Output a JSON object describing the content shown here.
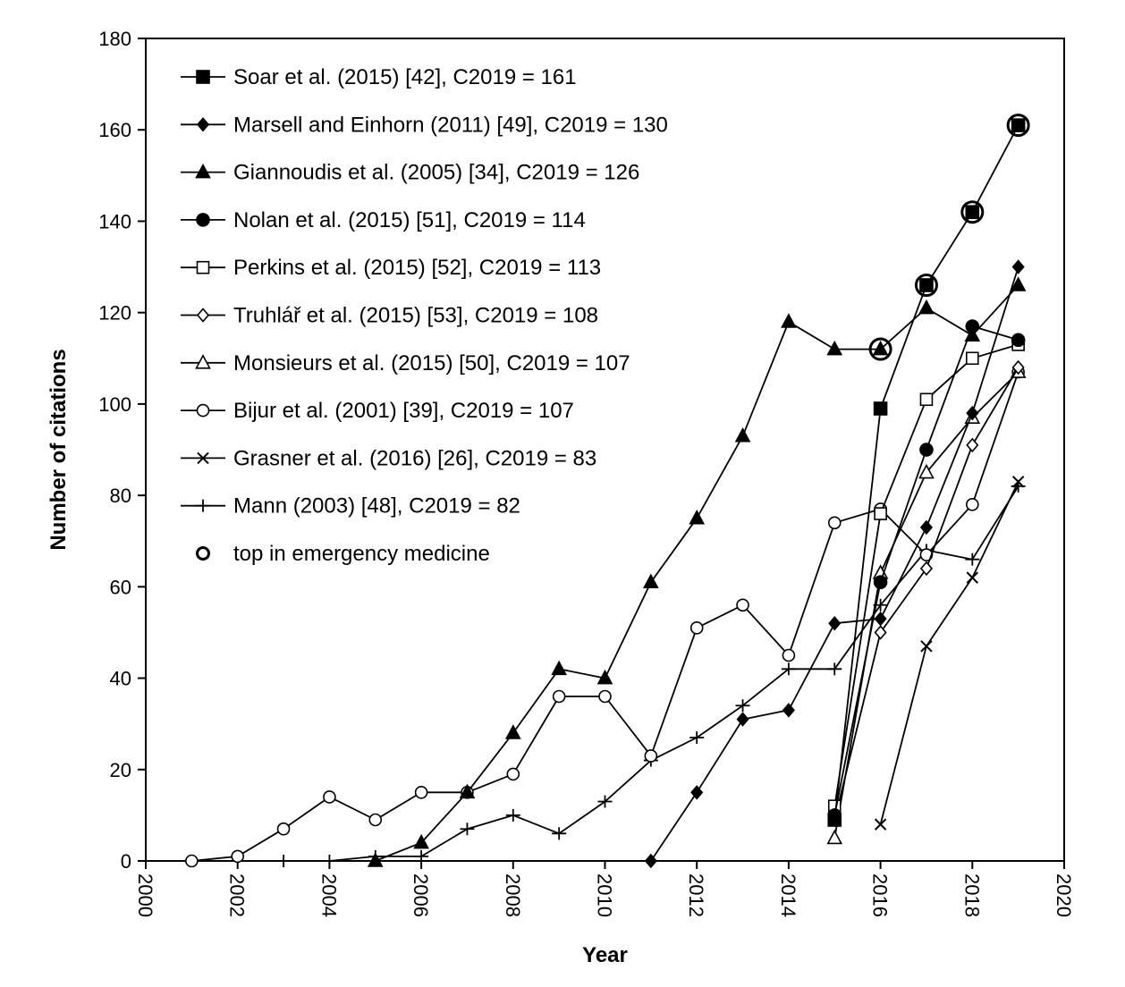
{
  "chart_data": {
    "type": "line",
    "xlabel": "Year",
    "ylabel": "Number of citations",
    "xlim": [
      2000,
      2020
    ],
    "ylim": [
      0,
      180
    ],
    "x_ticks": [
      2000,
      2002,
      2004,
      2006,
      2008,
      2010,
      2012,
      2014,
      2016,
      2018,
      2020
    ],
    "y_ticks": [
      0,
      20,
      40,
      60,
      80,
      100,
      120,
      140,
      160,
      180
    ],
    "grid": false,
    "legend_position": "top-left",
    "series": [
      {
        "name": "Soar et al. (2015) [42], C2019 = 161",
        "marker": "square-filled",
        "points": [
          [
            2015,
            9
          ],
          [
            2016,
            99
          ],
          [
            2017,
            126
          ],
          [
            2018,
            142
          ],
          [
            2019,
            161
          ]
        ]
      },
      {
        "name": "Marsell and Einhorn (2011) [49], C2019 = 130",
        "marker": "diamond-filled",
        "points": [
          [
            2011,
            0
          ],
          [
            2012,
            15
          ],
          [
            2013,
            31
          ],
          [
            2014,
            33
          ],
          [
            2015,
            52
          ],
          [
            2016,
            53
          ],
          [
            2017,
            73
          ],
          [
            2018,
            98
          ],
          [
            2019,
            130
          ]
        ]
      },
      {
        "name": "Giannoudis et al. (2005) [34], C2019 = 126",
        "marker": "triangle-filled",
        "points": [
          [
            2005,
            0
          ],
          [
            2006,
            4
          ],
          [
            2007,
            15
          ],
          [
            2008,
            28
          ],
          [
            2009,
            42
          ],
          [
            2010,
            40
          ],
          [
            2011,
            61
          ],
          [
            2012,
            75
          ],
          [
            2013,
            93
          ],
          [
            2014,
            118
          ],
          [
            2015,
            112
          ],
          [
            2016,
            112
          ],
          [
            2017,
            121
          ],
          [
            2018,
            115
          ],
          [
            2019,
            126
          ]
        ]
      },
      {
        "name": "Nolan et al. (2015) [51], C2019 = 114",
        "marker": "circle-filled",
        "points": [
          [
            2015,
            10
          ],
          [
            2016,
            61
          ],
          [
            2017,
            90
          ],
          [
            2018,
            117
          ],
          [
            2019,
            114
          ]
        ]
      },
      {
        "name": "Perkins et al. (2015) [52], C2019 = 113",
        "marker": "square-open",
        "points": [
          [
            2015,
            12
          ],
          [
            2016,
            76
          ],
          [
            2017,
            101
          ],
          [
            2018,
            110
          ],
          [
            2019,
            113
          ]
        ]
      },
      {
        "name": "Truhlář et al. (2015) [53], C2019 = 108",
        "marker": "diamond-open",
        "points": [
          [
            2015,
            9
          ],
          [
            2016,
            50
          ],
          [
            2017,
            64
          ],
          [
            2018,
            91
          ],
          [
            2019,
            108
          ]
        ]
      },
      {
        "name": "Monsieurs et al. (2015) [50], C2019 = 107",
        "marker": "triangle-open",
        "points": [
          [
            2015,
            5
          ],
          [
            2016,
            63
          ],
          [
            2017,
            85
          ],
          [
            2018,
            97
          ],
          [
            2019,
            107
          ]
        ]
      },
      {
        "name": "Bijur et al. (2001) [39], C2019 = 107",
        "marker": "circle-open",
        "points": [
          [
            2001,
            0
          ],
          [
            2002,
            1
          ],
          [
            2003,
            7
          ],
          [
            2004,
            14
          ],
          [
            2005,
            9
          ],
          [
            2006,
            15
          ],
          [
            2007,
            15
          ],
          [
            2008,
            19
          ],
          [
            2009,
            36
          ],
          [
            2010,
            36
          ],
          [
            2011,
            23
          ],
          [
            2012,
            51
          ],
          [
            2013,
            56
          ],
          [
            2014,
            45
          ],
          [
            2015,
            74
          ],
          [
            2016,
            77
          ],
          [
            2017,
            67
          ],
          [
            2018,
            78
          ],
          [
            2019,
            107
          ]
        ]
      },
      {
        "name": "Grasner et al. (2016) [26], C2019 = 83",
        "marker": "x",
        "points": [
          [
            2016,
            8
          ],
          [
            2017,
            47
          ],
          [
            2018,
            62
          ],
          [
            2019,
            83
          ]
        ]
      },
      {
        "name": "Mann (2003) [48], C2019 = 82",
        "marker": "plus",
        "points": [
          [
            2003,
            0
          ],
          [
            2004,
            0
          ],
          [
            2005,
            1
          ],
          [
            2006,
            1
          ],
          [
            2007,
            7
          ],
          [
            2008,
            10
          ],
          [
            2009,
            6
          ],
          [
            2010,
            13
          ],
          [
            2011,
            22
          ],
          [
            2012,
            27
          ],
          [
            2013,
            34
          ],
          [
            2014,
            42
          ],
          [
            2015,
            42
          ],
          [
            2016,
            56
          ],
          [
            2017,
            68
          ],
          [
            2018,
            66
          ],
          [
            2019,
            82
          ]
        ]
      }
    ],
    "highlight": {
      "name": "top in emergency medicine",
      "marker": "circle-open-large",
      "points": [
        [
          2016,
          112
        ],
        [
          2017,
          126
        ],
        [
          2018,
          142
        ],
        [
          2019,
          161
        ]
      ]
    }
  }
}
